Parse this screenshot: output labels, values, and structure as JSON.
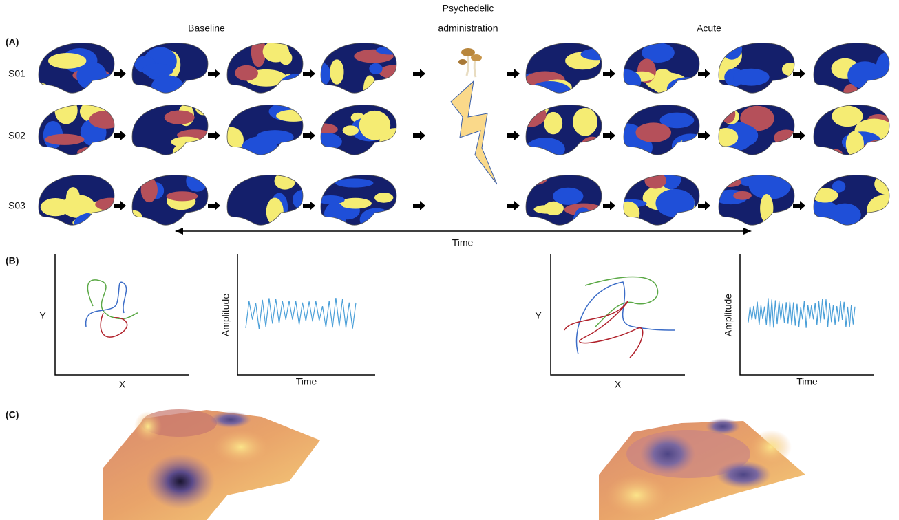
{
  "panel_a": {
    "label": "(A)",
    "baseline_title": "Baseline",
    "intervention_title": [
      "Psychedelic",
      "administration"
    ],
    "acute_title": "Acute",
    "subjects": [
      {
        "name": "S01",
        "color": "#3b6cc7"
      },
      {
        "name": "S02",
        "color": "#c0272d"
      },
      {
        "name": "S03",
        "color": "#5aa845"
      }
    ],
    "time_label": "Time"
  },
  "panel_b": {
    "label": "(B)",
    "baseline": {
      "trajectory": {
        "y_label": "Y",
        "x_label": "X"
      },
      "signal": {
        "y_label": "Amplitude",
        "x_label": "Time"
      }
    },
    "acute": {
      "trajectory": {
        "y_label": "Y",
        "x_label": "X"
      },
      "signal": {
        "y_label": "Amplitude",
        "x_label": "Time"
      }
    }
  },
  "panel_c": {
    "label": "(C)"
  }
}
